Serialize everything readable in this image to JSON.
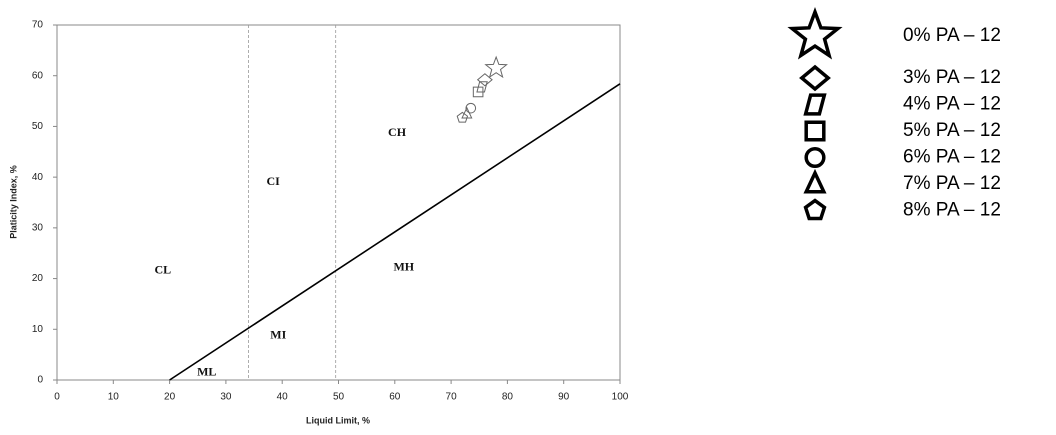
{
  "chart_data": {
    "type": "scatter",
    "x_label": "Liquid Limit, %",
    "y_label": "Platicity Index, %",
    "xlim": [
      0,
      100
    ],
    "ylim": [
      0,
      70
    ],
    "xticks": [
      0,
      10,
      20,
      30,
      40,
      50,
      60,
      70,
      80,
      90,
      100
    ],
    "yticks": [
      0,
      10,
      20,
      30,
      40,
      50,
      60,
      70
    ],
    "a_line": {
      "x": [
        20,
        100
      ],
      "y": [
        0,
        58.4
      ]
    },
    "vlines": [
      34,
      49.5
    ],
    "annotations": [
      {
        "text": "CL",
        "x": 18.8,
        "y": 21.5
      },
      {
        "text": "CI",
        "x": 38.4,
        "y": 39
      },
      {
        "text": "CH",
        "x": 60.4,
        "y": 48.7
      },
      {
        "text": "MH",
        "x": 61.6,
        "y": 22.1
      },
      {
        "text": "MI",
        "x": 39.3,
        "y": 8.7
      },
      {
        "text": "ML",
        "x": 26.6,
        "y": 1.4
      }
    ],
    "series": [
      {
        "name": "0% PA – 12",
        "marker": "star",
        "color": "#666",
        "x": [
          78.0
        ],
        "values": [
          61.5
        ]
      },
      {
        "name": "3% PA – 12",
        "marker": "diamond",
        "color": "#666",
        "x": [
          76.0
        ],
        "values": [
          59.2
        ]
      },
      {
        "name": "4% PA – 12",
        "marker": "parallelogram",
        "color": "#666",
        "x": [
          75.5
        ],
        "values": [
          57.8
        ]
      },
      {
        "name": "5% PA – 12",
        "marker": "square",
        "color": "#666",
        "x": [
          74.8
        ],
        "values": [
          56.8
        ]
      },
      {
        "name": "6% PA – 12",
        "marker": "circle",
        "color": "#666",
        "x": [
          73.5
        ],
        "values": [
          53.6
        ]
      },
      {
        "name": "7% PA – 12",
        "marker": "triangle",
        "color": "#666",
        "x": [
          72.8
        ],
        "values": [
          52.5
        ]
      },
      {
        "name": "8% PA – 12",
        "marker": "pentagon",
        "color": "#666",
        "x": [
          72.0
        ],
        "values": [
          51.7
        ]
      }
    ]
  }
}
